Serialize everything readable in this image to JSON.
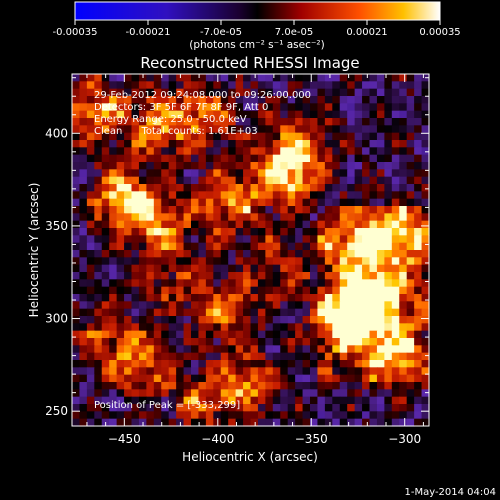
{
  "colorbar": {
    "ticks": [
      "-0.00035",
      "-0.00021",
      "-7.0e-05",
      "7.0e-05",
      "0.00021",
      "0.00035"
    ],
    "units": "(photons cm⁻² s⁻¹ asec⁻²)",
    "range": [
      -0.00035,
      0.00035
    ]
  },
  "footer": {
    "date": "1-May-2014 04:04"
  },
  "chart_data": {
    "type": "heatmap",
    "title": "Reconstructed RHESSI Image",
    "xlabel": "Heliocentric X (arcsec)",
    "ylabel": "Heliocentric Y (arcsec)",
    "xlim": [
      -478,
      -287
    ],
    "ylim": [
      242,
      432
    ],
    "xticks": [
      -450,
      -400,
      -350,
      -300
    ],
    "yticks": [
      250,
      300,
      350,
      400
    ],
    "xtick_labels": [
      "−450",
      "−400",
      "−350",
      "−300"
    ],
    "ytick_labels": [
      "250",
      "300",
      "350",
      "400"
    ],
    "annotations": [
      "29-Feb-2012 09:24:08.000 to 09:26:00.000",
      "Detectors: 3F 5F 6F 7F 8F 9F, Att 0",
      "Energy Range: 25.0 - 50.0 keV",
      "Clean      Total counts: 1.61E+03"
    ],
    "peak_label": "Position of Peak = [-333,299]",
    "peak": [
      -333,
      299
    ],
    "hotspots": [
      {
        "x": -465,
        "y": 412,
        "v": 0.8
      },
      {
        "x": -430,
        "y": 405,
        "v": 0.75
      },
      {
        "x": -450,
        "y": 365,
        "v": 0.95
      },
      {
        "x": -432,
        "y": 350,
        "v": 0.7
      },
      {
        "x": -395,
        "y": 362,
        "v": 0.75
      },
      {
        "x": -405,
        "y": 410,
        "v": 0.6
      },
      {
        "x": -365,
        "y": 378,
        "v": 1.0
      },
      {
        "x": -355,
        "y": 395,
        "v": 0.6
      },
      {
        "x": -333,
        "y": 299,
        "v": 1.0
      },
      {
        "x": -315,
        "y": 310,
        "v": 0.95
      },
      {
        "x": -325,
        "y": 340,
        "v": 0.8
      },
      {
        "x": -300,
        "y": 345,
        "v": 0.75
      },
      {
        "x": -305,
        "y": 280,
        "v": 0.7
      },
      {
        "x": -460,
        "y": 290,
        "v": 0.55
      },
      {
        "x": -440,
        "y": 275,
        "v": 0.6
      },
      {
        "x": -395,
        "y": 305,
        "v": 0.65
      },
      {
        "x": -385,
        "y": 265,
        "v": 0.7
      },
      {
        "x": -410,
        "y": 255,
        "v": 0.5
      },
      {
        "x": -365,
        "y": 330,
        "v": 0.45
      },
      {
        "x": -425,
        "y": 320,
        "v": 0.4
      }
    ]
  }
}
